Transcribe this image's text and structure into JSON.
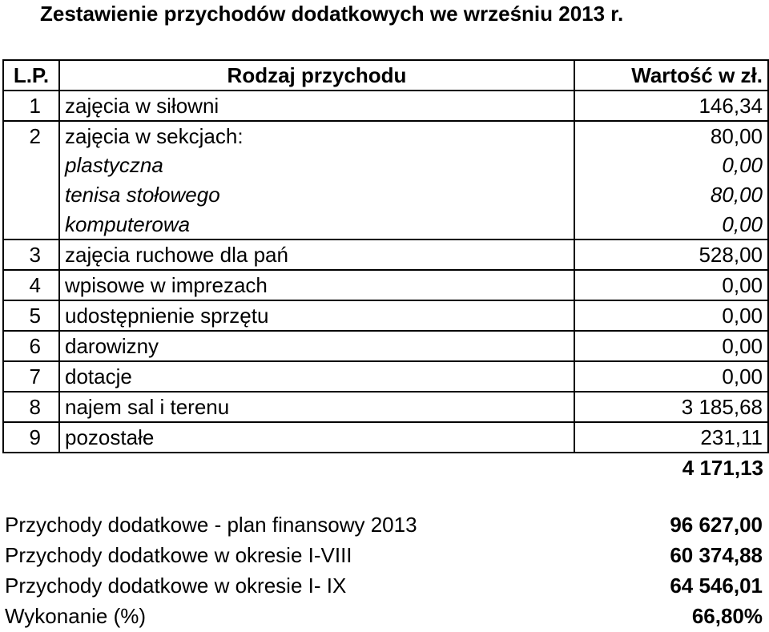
{
  "title": "Zestawienie przychodów dodatkowych we wrześniu 2013 r.",
  "table": {
    "headers": {
      "lp": "L.P.",
      "name": "Rodzaj przychodu",
      "value": "Wartość w zł."
    },
    "rows": [
      {
        "lp": "1",
        "name": "zajęcia w siłowni",
        "value": "146,34"
      },
      {
        "lp": "2",
        "name": "zajęcia w sekcjach:",
        "value": "80,00"
      },
      {
        "lp": "",
        "name": "plastyczna",
        "value": "0,00"
      },
      {
        "lp": "",
        "name": "tenisa stołowego",
        "value": "80,00"
      },
      {
        "lp": "",
        "name": "komputerowa",
        "value": "0,00"
      },
      {
        "lp": "3",
        "name": "zajęcia ruchowe dla pań",
        "value": "528,00"
      },
      {
        "lp": "4",
        "name": "wpisowe w imprezach",
        "value": "0,00"
      },
      {
        "lp": "5",
        "name": "udostępnienie sprzętu",
        "value": "0,00"
      },
      {
        "lp": "6",
        "name": "darowizny",
        "value": "0,00"
      },
      {
        "lp": "7",
        "name": "dotacje",
        "value": "0,00"
      },
      {
        "lp": "8",
        "name": "najem sal i terenu",
        "value": "3 185,68"
      },
      {
        "lp": "9",
        "name": "pozostałe",
        "value": "231,11"
      }
    ],
    "total": "4 171,13"
  },
  "summary": [
    {
      "label": "Przychody dodatkowe - plan finansowy 2013",
      "value": "96 627,00"
    },
    {
      "label": "Przychody dodatkowe w okresie I-VIII",
      "value": "60 374,88"
    },
    {
      "label": "Przychody dodatkowe w okresie I- IX",
      "value": "64 546,01"
    },
    {
      "label": "Wykonanie (%)",
      "value": "66,80%"
    }
  ]
}
